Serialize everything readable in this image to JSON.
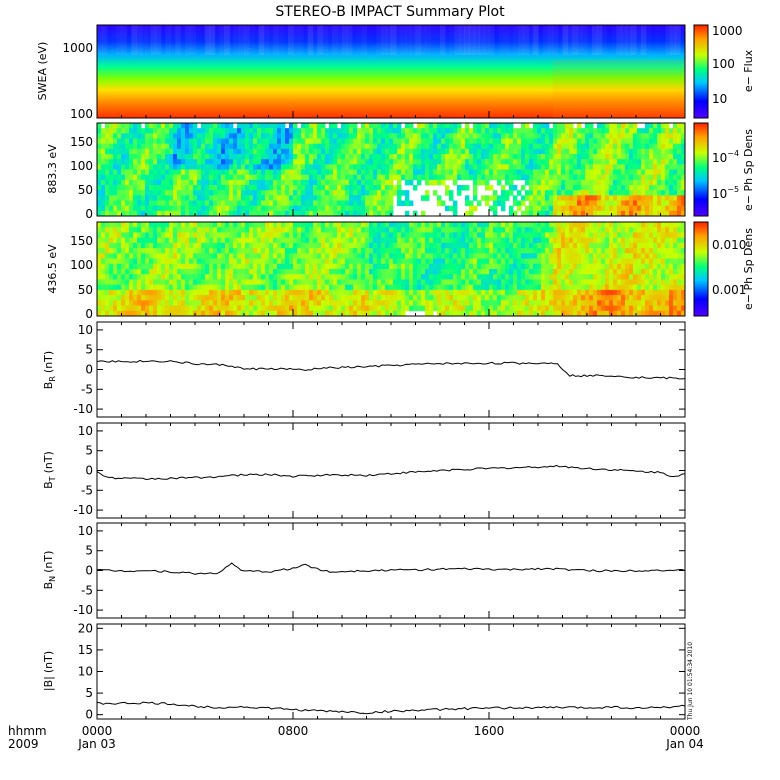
{
  "title": "STEREO-B IMPACT Summary Plot",
  "stamp": "Thu Jun 10 01:54:34 2010",
  "x_axis": {
    "ticks": [
      "0000",
      "0800",
      "1600",
      "0000"
    ],
    "dates": [
      "Jan 03",
      "",
      "",
      "Jan 04"
    ],
    "corner_label": "hhmm",
    "year": "2009"
  },
  "colors": {
    "line": "#000000",
    "background": "#ffffff",
    "colorbar": [
      "#5000ff",
      "#0000ff",
      "#00c8ff",
      "#00ff80",
      "#c8ff00",
      "#ffa000",
      "#ff2000"
    ]
  },
  "chart_data": [
    {
      "type": "heatmap",
      "ylabel": "SWEA (eV)",
      "yscale": "log",
      "yticks": [
        "1000",
        "100"
      ],
      "colorbar": {
        "label": "e− Flux",
        "ticks": [
          "1000",
          "100",
          "10"
        ]
      },
      "description_values": {
        "rows_high_to_low_energy": [
          0.05,
          0.12,
          0.3,
          0.55,
          0.75,
          0.9,
          0.95
        ]
      }
    },
    {
      "type": "heatmap",
      "ylabel": "883.3 eV",
      "yticks": [
        "150",
        "100",
        "50",
        "0"
      ],
      "ylim": [
        0,
        180
      ],
      "colorbar": {
        "label": "e− Ph Sp Dens",
        "ticks": [
          "10^-4",
          "10^-5"
        ]
      }
    },
    {
      "type": "heatmap",
      "ylabel": "436.5 eV",
      "yticks": [
        "150",
        "100",
        "50",
        "0"
      ],
      "ylim": [
        0,
        180
      ],
      "colorbar": {
        "label": "e− Ph Sp Dens",
        "ticks": [
          "0.010",
          "0.001"
        ]
      }
    },
    {
      "type": "line",
      "ylabel": "B",
      "ylabel_sub": "R",
      "ylabel_unit": "(nT)",
      "ylim": [
        -12,
        12
      ],
      "yticks": [
        "10",
        "5",
        "0",
        "-5",
        "-10"
      ],
      "x": [
        0,
        1,
        2,
        3,
        4,
        5,
        5.5,
        6,
        7,
        8,
        8.5,
        9,
        10,
        11,
        12,
        13,
        14,
        15,
        16,
        17,
        18,
        18.8,
        19,
        19.3,
        20,
        21,
        22,
        23,
        24
      ],
      "y": [
        2.2,
        2.0,
        2.1,
        2.1,
        1.4,
        1.2,
        0.9,
        0.1,
        0.2,
        0.1,
        -0.3,
        0.3,
        0.5,
        0.7,
        1.0,
        1.3,
        1.5,
        1.5,
        1.6,
        1.6,
        1.6,
        1.6,
        0.2,
        -1.5,
        -1.6,
        -1.5,
        -2.0,
        -2.1,
        -2.3
      ]
    },
    {
      "type": "line",
      "ylabel": "B",
      "ylabel_sub": "T",
      "ylabel_unit": "(nT)",
      "ylim": [
        -12,
        12
      ],
      "yticks": [
        "10",
        "5",
        "0",
        "-5",
        "-10"
      ],
      "x": [
        0,
        0.5,
        1,
        2,
        3,
        4,
        5,
        6,
        7,
        8,
        9,
        10,
        11,
        12,
        13,
        14,
        15,
        16,
        17,
        18,
        19,
        19.5,
        20,
        21,
        22,
        23,
        23.5,
        24
      ],
      "y": [
        -0.5,
        -1.8,
        -2.0,
        -2.1,
        -2.0,
        -1.8,
        -1.5,
        -1.1,
        -1.0,
        -1.5,
        -1.2,
        -1.1,
        -1.2,
        -0.8,
        -0.4,
        0.0,
        0.3,
        0.5,
        0.7,
        0.9,
        1.1,
        0.7,
        0.5,
        0.2,
        -0.2,
        -0.5,
        -1.5,
        -0.8
      ]
    },
    {
      "type": "line",
      "ylabel": "B",
      "ylabel_sub": "N",
      "ylabel_unit": "(nT)",
      "ylim": [
        -12,
        12
      ],
      "yticks": [
        "10",
        "5",
        "0",
        "-5",
        "-10"
      ],
      "x": [
        0,
        1,
        2,
        3,
        4,
        5,
        5.5,
        6,
        7,
        8,
        8.5,
        9,
        9.5,
        10,
        11,
        12,
        13,
        14,
        15,
        16,
        17,
        18,
        19,
        20,
        21,
        22,
        23,
        24
      ],
      "y": [
        0.1,
        -0.1,
        0.0,
        -0.3,
        -0.8,
        -0.6,
        1.8,
        -0.2,
        -0.3,
        0.5,
        1.5,
        0.4,
        -0.4,
        -0.2,
        0.0,
        0.1,
        0.2,
        0.3,
        0.4,
        0.3,
        0.2,
        0.5,
        0.3,
        0.0,
        -0.1,
        0.0,
        0.1,
        0.0
      ]
    },
    {
      "type": "line",
      "ylabel": "|B|",
      "ylabel_unit": "(nT)",
      "ylim": [
        -1,
        21
      ],
      "yticks": [
        "20",
        "15",
        "10",
        "5",
        "0"
      ],
      "x": [
        0,
        1,
        2,
        3,
        4,
        5,
        6,
        7,
        8,
        9,
        10,
        11,
        12,
        13,
        14,
        15,
        16,
        17,
        18,
        19,
        20,
        21,
        22,
        23,
        24
      ],
      "y": [
        2.6,
        2.6,
        2.7,
        2.5,
        1.9,
        1.7,
        1.8,
        1.5,
        1.2,
        0.9,
        0.7,
        0.4,
        0.8,
        1.0,
        1.2,
        1.4,
        1.5,
        1.6,
        1.6,
        1.7,
        1.6,
        1.8,
        1.5,
        1.7,
        2.0
      ]
    }
  ]
}
